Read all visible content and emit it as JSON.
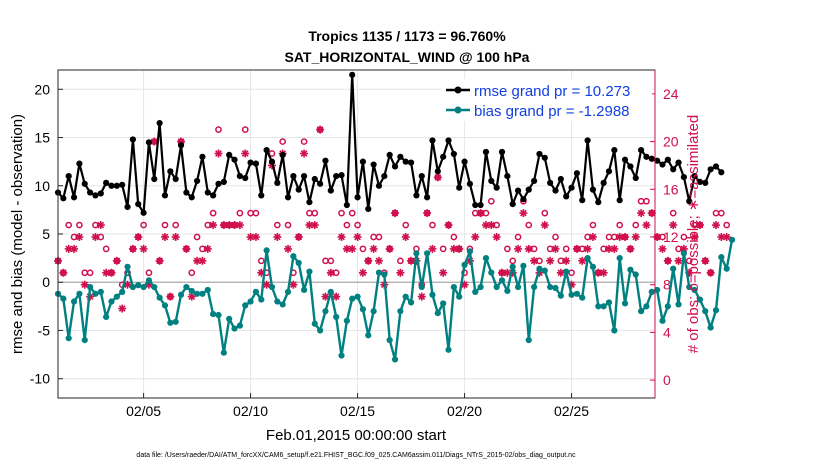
{
  "chart_data": {
    "type": "line",
    "title_line1": "Tropics 1135 / 1173 = 96.760%",
    "title_line2": "SAT_HORIZONTAL_WIND @ 100 hPa",
    "xlabel": "Feb.01,2015 00:00:00 start",
    "ylabel_left": "rmse and bias (model - observation)",
    "ylabel_right": "# of obs: o=possible; ∗=assimilated",
    "footnote": "data file: /Users/raeder/DAI/ATM_forcXX/CAM6_setup/f.e21.FHIST_BGC.f09_025.CAM6assim.011/Diags_NTrS_2015-02/obs_diag_output.nc",
    "xlim": [
      1,
      28.9
    ],
    "ylim_left": [
      -12,
      22
    ],
    "ylim_right": [
      -1.5,
      26
    ],
    "x_ticks": [
      5,
      10,
      15,
      20,
      25
    ],
    "x_tick_labels": [
      "02/05",
      "02/10",
      "02/15",
      "02/20",
      "02/25"
    ],
    "y_ticks_left": [
      -10,
      -5,
      0,
      5,
      10,
      15,
      20
    ],
    "y_ticks_right": [
      0,
      4,
      8,
      12,
      16,
      20,
      24
    ],
    "x_start": 1.0,
    "x_step": 0.25,
    "series": [
      {
        "name": "rmse grand pr = 10.273",
        "axis": "left",
        "color": "#000000",
        "values": [
          9.3,
          8.7,
          11.0,
          8.8,
          12.3,
          10.2,
          9.3,
          9.0,
          9.2,
          10.3,
          10.0,
          10.0,
          10.1,
          7.8,
          14.8,
          8.1,
          7.2,
          14.5,
          10.7,
          16.5,
          9.0,
          11.5,
          10.7,
          14.2,
          9.3,
          8.8,
          10.5,
          13.0,
          9.3,
          9.0,
          10.2,
          10.4,
          13.2,
          12.7,
          11.0,
          10.8,
          12.4,
          12.3,
          9.0,
          13.7,
          12.5,
          10.3,
          13.2,
          8.8,
          11.0,
          9.6,
          11.0,
          8.3,
          10.7,
          10.2,
          12.6,
          9.5,
          11.0,
          11.1,
          8.0,
          21.5,
          8.8,
          12.5,
          7.6,
          12.2,
          10.0,
          11.0,
          13.2,
          12.0,
          13.0,
          12.5,
          12.4,
          9.0,
          11.0,
          8.8,
          14.7,
          11.5,
          13.0,
          14.7,
          13.3,
          9.8,
          12.5,
          10.2,
          8.0,
          8.0,
          13.5,
          10.5,
          9.8,
          13.5,
          11.0,
          8.1,
          9.5,
          8.6,
          9.6,
          10.5,
          13.3,
          12.9,
          10.3,
          9.5,
          10.7,
          8.9,
          9.8,
          11.3,
          8.5,
          14.7,
          9.6,
          8.3,
          10.3,
          11.5,
          13.7,
          8.5,
          12.7,
          12.0,
          10.8,
          13.7,
          13.0,
          12.8,
          12.6,
          12.2,
          12.7,
          11.7,
          12.4,
          10.9,
          8.4,
          11.0,
          10.4,
          10.3,
          11.7,
          12.0,
          11.4
        ]
      },
      {
        "name": "bias grand pr = -1.2988",
        "axis": "left",
        "color": "#008080",
        "values": [
          -1.2,
          -1.7,
          -5.8,
          -2.0,
          -1.2,
          -6.0,
          -0.5,
          -1.2,
          -1.0,
          -3.6,
          -2.0,
          -1.5,
          -1.0,
          1.6,
          -0.5,
          -0.3,
          -0.5,
          0.2,
          -0.5,
          -1.6,
          -2.4,
          -4.2,
          -4.1,
          -1.3,
          -0.5,
          -0.9,
          -1.2,
          -1.2,
          -0.8,
          -3.3,
          -3.4,
          -7.3,
          -3.8,
          -4.8,
          -4.5,
          -2.4,
          -2.0,
          -1.0,
          -1.8,
          3.3,
          -0.5,
          -2.0,
          -2.3,
          -1.0,
          2.7,
          2.0,
          -0.8,
          1.1,
          -4.3,
          -5.0,
          -3.0,
          -1.0,
          -3.6,
          -7.6,
          -4.0,
          -1.7,
          -1.5,
          -2.8,
          -5.5,
          -3.0,
          1.0,
          0.8,
          -6.0,
          -8.0,
          -3.0,
          -1.5,
          -2.1,
          3.0,
          -0.5,
          3.0,
          -1.3,
          -3.2,
          -2.2,
          -7.0,
          -0.5,
          -1.5,
          1.8,
          3.2,
          -1.0,
          -0.5,
          2.5,
          1.0,
          -0.5,
          0.2,
          -0.9,
          1.6,
          -0.5,
          1.7,
          -6.0,
          -0.5,
          1.4,
          1.2,
          -0.5,
          -0.6,
          -1.4,
          1.1,
          -1.3,
          -1.2,
          -1.6,
          2.5,
          1.6,
          -2.5,
          -2.5,
          -2.1,
          -5.0,
          2.5,
          -2.2,
          1.3,
          0.8,
          -3.0,
          -2.5,
          -1.0,
          -0.8,
          -4.0,
          -2.5,
          1.4,
          -2.3,
          3.0,
          -0.5,
          -0.8,
          -1.8,
          -3.0,
          -4.7,
          -2.9,
          2.6,
          1.4,
          4.4
        ]
      },
      {
        "name": "obs possible",
        "axis": "right",
        "color": "#d0104c",
        "marker": "o",
        "values": [
          10,
          9,
          13,
          12,
          13,
          9,
          9,
          13,
          12,
          11,
          9,
          10,
          8,
          9,
          11,
          12,
          13,
          9,
          20,
          10,
          13,
          7,
          13,
          20,
          11,
          9,
          12,
          11,
          13,
          14,
          21,
          13,
          13,
          13,
          14,
          21,
          14,
          14,
          10,
          9,
          19,
          13,
          20,
          13,
          9,
          12,
          20,
          14,
          14,
          21,
          10,
          10,
          9,
          14,
          13,
          14,
          13,
          11,
          10,
          12,
          12,
          9,
          11,
          14,
          10,
          13,
          10,
          11,
          8,
          14,
          13,
          17,
          11,
          13,
          12,
          11,
          9,
          11,
          14,
          14,
          14,
          15,
          13,
          9,
          11,
          10,
          12,
          15,
          13,
          11,
          10,
          14,
          11,
          12,
          10,
          11,
          9,
          11,
          11,
          12,
          13,
          9,
          11,
          12,
          12,
          13,
          12,
          11,
          13,
          15,
          15,
          14,
          12,
          12,
          10,
          14,
          11,
          12,
          10,
          13,
          13,
          10,
          9,
          14,
          14,
          13
        ]
      },
      {
        "name": "obs assimilated",
        "axis": "right",
        "color": "#d0104c",
        "marker": "*",
        "values": [
          10,
          9,
          11,
          11,
          12,
          8,
          7,
          12,
          13,
          9,
          9,
          10,
          6,
          8,
          11,
          12,
          11,
          8,
          20,
          10,
          12,
          7,
          12,
          20,
          11,
          7,
          10,
          10,
          11,
          13,
          19,
          13,
          13,
          13,
          13,
          19,
          12,
          12,
          9,
          8,
          18,
          12,
          19,
          11,
          8,
          12,
          19,
          13,
          13,
          21,
          7,
          9,
          7,
          12,
          11,
          11,
          12,
          9,
          10,
          11,
          10,
          8,
          11,
          14,
          9,
          12,
          10,
          10,
          7,
          14,
          11,
          17,
          9,
          13,
          11,
          11,
          8,
          10,
          12,
          14,
          13,
          13,
          12,
          9,
          9,
          9,
          11,
          14,
          11,
          10,
          9,
          13,
          10,
          11,
          9,
          10,
          8,
          11,
          10,
          11,
          12,
          9,
          9,
          11,
          11,
          12,
          12,
          11,
          12,
          14,
          13,
          14,
          12,
          11,
          10,
          13,
          10,
          11,
          9,
          12,
          13,
          10,
          9,
          13,
          12,
          12
        ]
      }
    ]
  }
}
